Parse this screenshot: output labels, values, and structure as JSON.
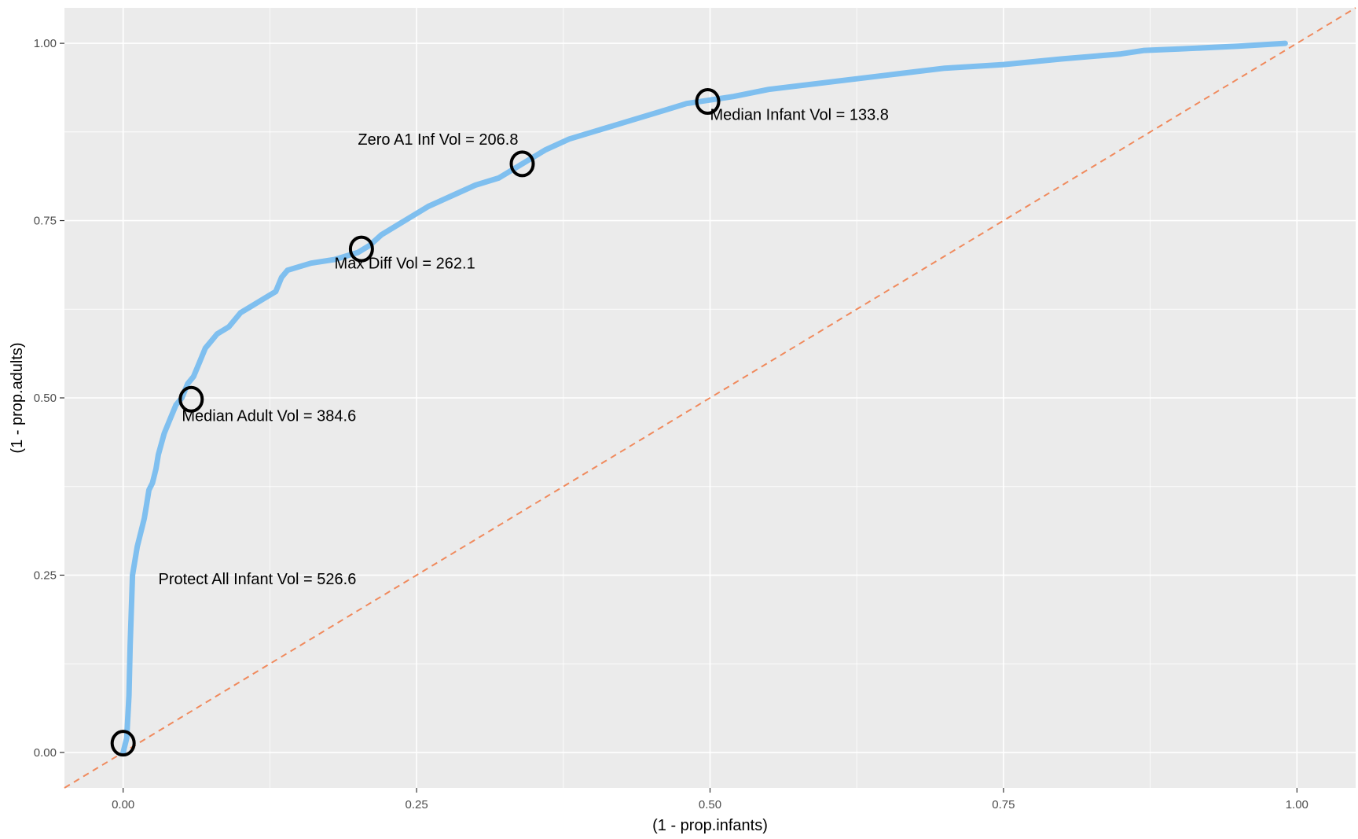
{
  "chart_data": {
    "type": "line",
    "xlabel": "(1 - prop.infants)",
    "ylabel": "(1 - prop.adults)",
    "xlim": [
      -0.05,
      1.05
    ],
    "ylim": [
      -0.05,
      1.05
    ],
    "x_ticks": [
      0,
      0.25,
      0.5,
      0.75,
      1
    ],
    "x_tick_labels": [
      "0.00",
      "0.25",
      "0.50",
      "0.75",
      "1.00"
    ],
    "y_ticks": [
      0,
      0.25,
      0.5,
      0.75,
      1
    ],
    "y_tick_labels": [
      "0.00",
      "0.25",
      "0.50",
      "0.75",
      "1.00"
    ],
    "grid": true,
    "colors": {
      "curve": "#7FBFEF",
      "reference_line": "#F08A5D",
      "markers": "#000000",
      "panel": "#EBEBEB"
    },
    "series": [
      {
        "x": [
          0,
          0.003,
          0.005,
          0.006,
          0.007,
          0.008,
          0.009,
          0.01,
          0.012,
          0.015,
          0.018,
          0.02,
          0.022,
          0.025,
          0.028,
          0.03,
          0.035,
          0.04,
          0.045,
          0.05,
          0.055,
          0.06,
          0.065,
          0.07,
          0.075,
          0.08,
          0.09,
          0.1,
          0.11,
          0.12,
          0.13,
          0.135,
          0.14,
          0.15,
          0.16,
          0.18,
          0.2,
          0.21,
          0.22,
          0.24,
          0.26,
          0.28,
          0.3,
          0.32,
          0.34,
          0.36,
          0.38,
          0.4,
          0.42,
          0.44,
          0.46,
          0.48,
          0.5,
          0.52,
          0.55,
          0.6,
          0.65,
          0.7,
          0.75,
          0.8,
          0.85,
          0.87,
          0.9,
          0.95,
          0.99
        ],
        "y": [
          0,
          0.02,
          0.08,
          0.15,
          0.2,
          0.25,
          0.26,
          0.27,
          0.29,
          0.31,
          0.33,
          0.35,
          0.37,
          0.38,
          0.4,
          0.42,
          0.45,
          0.47,
          0.49,
          0.5,
          0.52,
          0.53,
          0.55,
          0.57,
          0.58,
          0.59,
          0.6,
          0.62,
          0.63,
          0.64,
          0.65,
          0.67,
          0.68,
          0.685,
          0.69,
          0.695,
          0.705,
          0.715,
          0.73,
          0.75,
          0.77,
          0.785,
          0.8,
          0.81,
          0.83,
          0.85,
          0.865,
          0.875,
          0.885,
          0.895,
          0.905,
          0.915,
          0.92,
          0.925,
          0.935,
          0.945,
          0.955,
          0.965,
          0.97,
          0.978,
          0.985,
          0.99,
          0.992,
          0.996,
          1.0
        ]
      }
    ],
    "reference_line": {
      "x": [
        -0.05,
        1.05
      ],
      "y": [
        -0.05,
        1.05
      ]
    },
    "markers": [
      {
        "x": 0.0,
        "y": 0.013,
        "label": ""
      },
      {
        "x": 0.058,
        "y": 0.498,
        "label": ""
      },
      {
        "x": 0.203,
        "y": 0.71,
        "label": ""
      },
      {
        "x": 0.34,
        "y": 0.83,
        "label": ""
      },
      {
        "x": 0.498,
        "y": 0.918,
        "label": ""
      }
    ],
    "annotations": [
      {
        "text": "Median Infant Vol = 133.8",
        "x": 0.5,
        "y": 0.9,
        "anchor": "start"
      },
      {
        "text": "Zero A1 Inf Vol = 206.8",
        "x": 0.2,
        "y": 0.865,
        "anchor": "start"
      },
      {
        "text": "Max Diff Vol = 262.1",
        "x": 0.18,
        "y": 0.69,
        "anchor": "start"
      },
      {
        "text": "Median Adult Vol = 384.6",
        "x": 0.05,
        "y": 0.475,
        "anchor": "start"
      },
      {
        "text": "Protect All Infant Vol = 526.6",
        "x": 0.03,
        "y": 0.245,
        "anchor": "start"
      }
    ]
  }
}
